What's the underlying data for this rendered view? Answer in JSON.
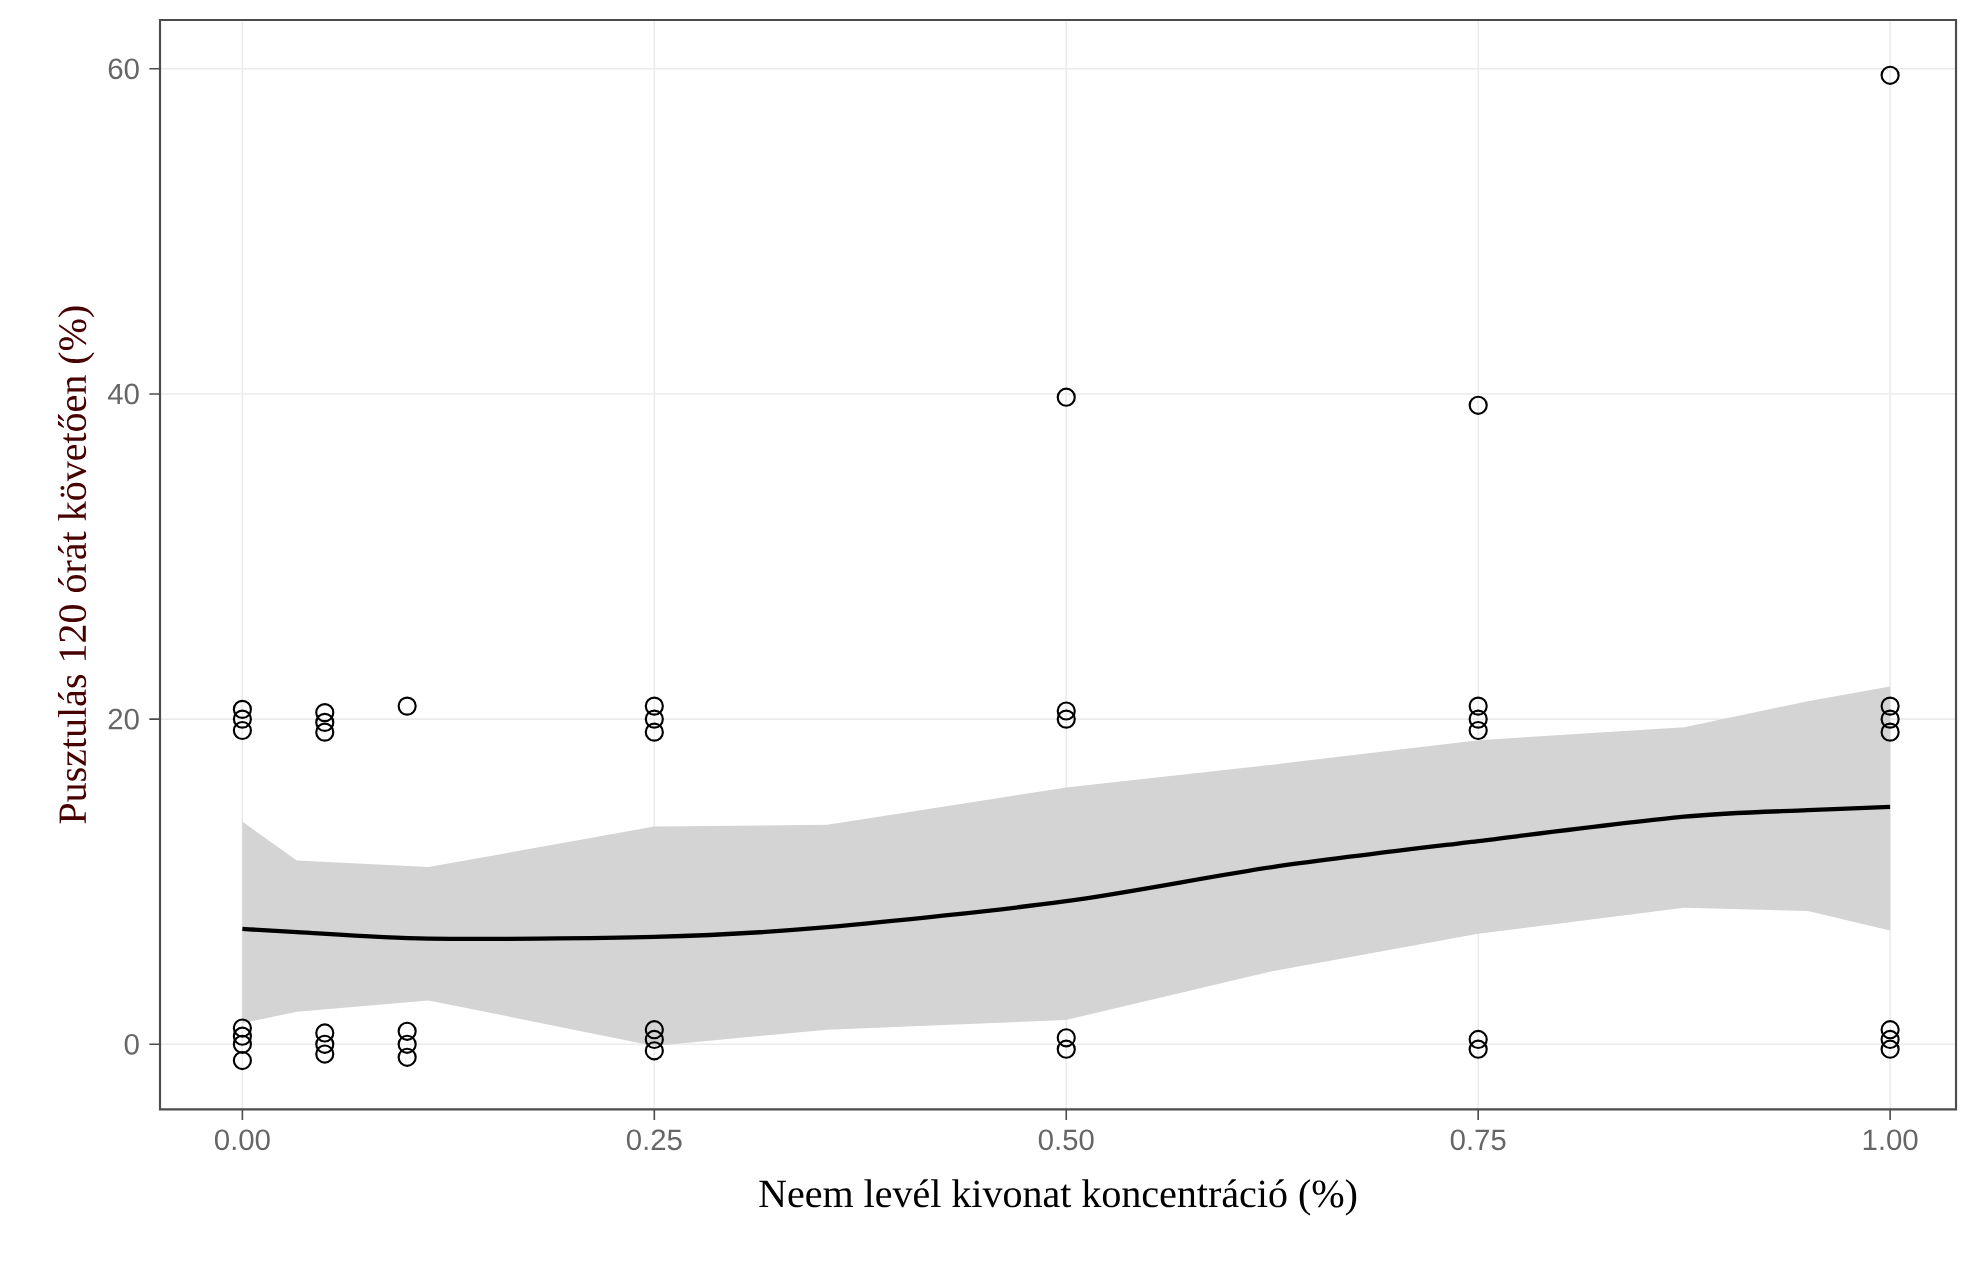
{
  "chart_data": {
    "type": "scatter",
    "xlabel": "Neem levél kivonat koncentráció (%)",
    "ylabel": "Pusztulás 120 órát követően (%)",
    "xlim": [
      -0.05,
      1.04
    ],
    "ylim": [
      -4,
      63
    ],
    "xticks": [
      {
        "value": 0,
        "label": "0.00"
      },
      0.25,
      {
        "value": 0.5,
        "label": "0.50"
      },
      0.75,
      {
        "value": 1,
        "label": "1.00"
      }
    ],
    "yticks": [
      0,
      20,
      40,
      60
    ],
    "grid": true,
    "series": [
      {
        "marker": "circle",
        "color": "#000000",
        "x": [
          0,
          0,
          0,
          0,
          0,
          0,
          0,
          0.05,
          0.05,
          0.05,
          0.05,
          0.05,
          0.05,
          0.1,
          0.1,
          0.1,
          0.1,
          0.25,
          0.25,
          0.25,
          0.25,
          0.25,
          0.25,
          0.5,
          0.5,
          0.5,
          0.5,
          0.5,
          0.75,
          0.75,
          0.75,
          0.75,
          0.75,
          0.75,
          1,
          1,
          1,
          1,
          1,
          1,
          1
        ],
        "values": [
          -1,
          0,
          0.5,
          1,
          19.3,
          20,
          20.6,
          -0.6,
          0,
          0.7,
          19.2,
          19.8,
          20.4,
          -0.8,
          0,
          0.8,
          20.8,
          -0.4,
          0.3,
          0.9,
          19.2,
          20,
          20.8,
          -0.3,
          0.4,
          20,
          20.5,
          39.8,
          -0.3,
          0.3,
          19.3,
          20,
          20.8,
          39.3,
          -0.3,
          0.3,
          0.9,
          19.2,
          20,
          20.8,
          59.6
        ]
      },
      {
        "type": "line",
        "marker": "none",
        "color": "#000000",
        "x": [
          0,
          0.033,
          0.113,
          0.25,
          0.355,
          0.5,
          0.625,
          0.75,
          0.875,
          0.95,
          1
        ],
        "values": [
          7.1,
          6.9,
          6.5,
          6.6,
          7.2,
          8.8,
          10.9,
          12.5,
          14.0,
          14.4,
          14.6
        ],
        "lower": [
          1.3,
          2.0,
          2.7,
          -0.1,
          0.9,
          1.5,
          4.5,
          6.8,
          8.4,
          8.2,
          7.0
        ],
        "upper": [
          13.7,
          11.3,
          10.9,
          13.4,
          13.5,
          15.8,
          17.2,
          18.7,
          19.5,
          21.1,
          22.0
        ]
      }
    ]
  }
}
